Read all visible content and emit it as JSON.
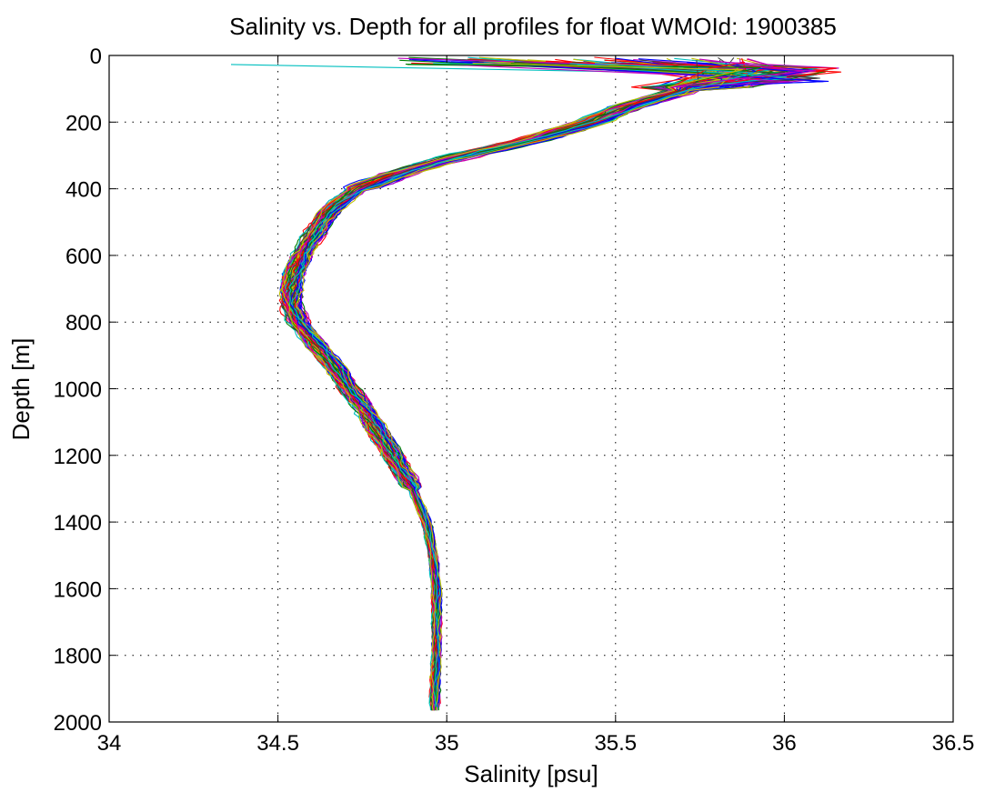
{
  "chart_data": {
    "type": "line",
    "title": "Salinity vs. Depth for all profiles for float WMOId: 1900385",
    "xlabel": "Salinity [psu]",
    "ylabel": "Depth [m]",
    "xlim": [
      34,
      36.5
    ],
    "ylim": [
      0,
      2000
    ],
    "y_reversed": true,
    "grid": true,
    "x_ticks": [
      34,
      34.5,
      35,
      35.5,
      36,
      36.5
    ],
    "y_ticks": [
      0,
      200,
      400,
      600,
      800,
      1000,
      1200,
      1400,
      1600,
      1800,
      2000
    ],
    "x_tick_labels": [
      "34",
      "34.5",
      "35",
      "35.5",
      "36",
      "36.5"
    ],
    "y_tick_labels": [
      "0",
      "200",
      "400",
      "600",
      "800",
      "1000",
      "1200",
      "1400",
      "1600",
      "1800",
      "2000"
    ],
    "series_colors": [
      "#0000ff",
      "#008000",
      "#ff0000",
      "#00bfbf",
      "#bf00bf",
      "#bfbf00",
      "#404040"
    ],
    "mean_profile": {
      "depth": [
        10,
        30,
        50,
        70,
        90,
        120,
        150,
        200,
        250,
        300,
        350,
        400,
        450,
        500,
        550,
        600,
        650,
        700,
        750,
        800,
        850,
        900,
        950,
        1000,
        1050,
        1100,
        1150,
        1200,
        1250,
        1300,
        1350,
        1400,
        1450,
        1500,
        1550,
        1600,
        1700,
        1800,
        1900,
        1970
      ],
      "salinity": [
        35.3,
        35.6,
        35.95,
        35.9,
        35.75,
        35.65,
        35.55,
        35.43,
        35.27,
        35.05,
        34.87,
        34.74,
        34.67,
        34.63,
        34.6,
        34.57,
        34.55,
        34.54,
        34.54,
        34.56,
        34.6,
        34.64,
        34.68,
        34.71,
        34.75,
        34.78,
        34.81,
        34.84,
        34.87,
        34.9,
        34.92,
        34.94,
        34.95,
        34.96,
        34.965,
        34.97,
        34.97,
        34.97,
        34.965,
        34.965
      ]
    },
    "profile_count": 90
  }
}
